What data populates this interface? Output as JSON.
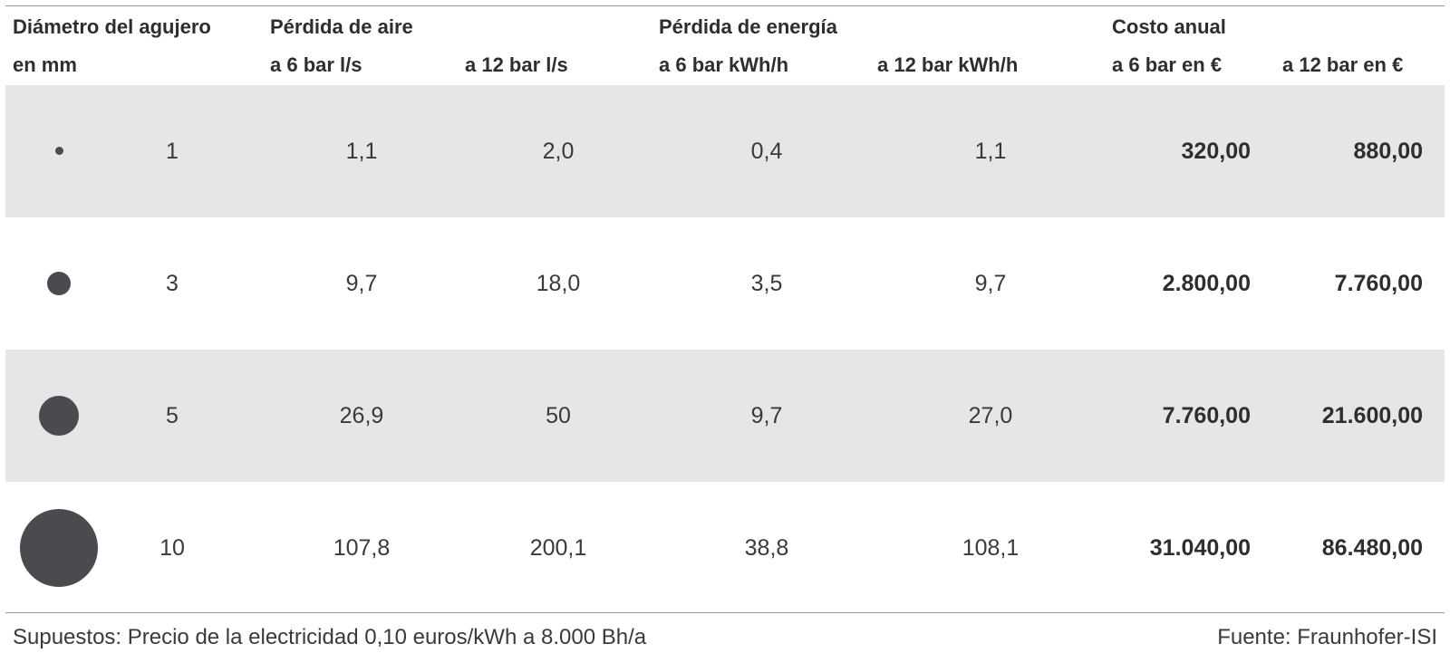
{
  "header": {
    "col1_line1": "Diámetro del agujero",
    "col1_line2": "en mm",
    "air_loss": "Pérdida de aire",
    "air_6": "a 6 bar l/s",
    "air_12": "a 12 bar l/s",
    "energy_loss": "Pérdida de energía",
    "energy_6": "a 6 bar kWh/h",
    "energy_12": "a 12 bar kWh/h",
    "annual_cost": "Costo anual",
    "cost_6": "a 6 bar en €",
    "cost_12": "a 12 bar en €"
  },
  "rows": [
    {
      "diameter": "1",
      "air_6": "1,1",
      "air_12": "2,0",
      "energy_6": "0,4",
      "energy_12": "1,1",
      "cost_6": "320,00",
      "cost_12": "880,00"
    },
    {
      "diameter": "3",
      "air_6": "9,7",
      "air_12": "18,0",
      "energy_6": "3,5",
      "energy_12": "9,7",
      "cost_6": "2.800,00",
      "cost_12": "7.760,00"
    },
    {
      "diameter": "5",
      "air_6": "26,9",
      "air_12": "50",
      "energy_6": "9,7",
      "energy_12": "27,0",
      "cost_6": "7.760,00",
      "cost_12": "21.600,00"
    },
    {
      "diameter": "10",
      "air_6": "107,8",
      "air_12": "200,1",
      "energy_6": "38,8",
      "energy_12": "108,1",
      "cost_6": "31.040,00",
      "cost_12": "86.480,00"
    }
  ],
  "footer": {
    "assumptions": "Supuestos: Precio de la electricidad 0,10 euros/kWh a 8.000 Bh/a",
    "source": "Fuente: Fraunhofer-ISI"
  },
  "colors": {
    "shade": "#e6e6e6",
    "dot": "#4b4b4f",
    "text": "#3a3a3c"
  }
}
